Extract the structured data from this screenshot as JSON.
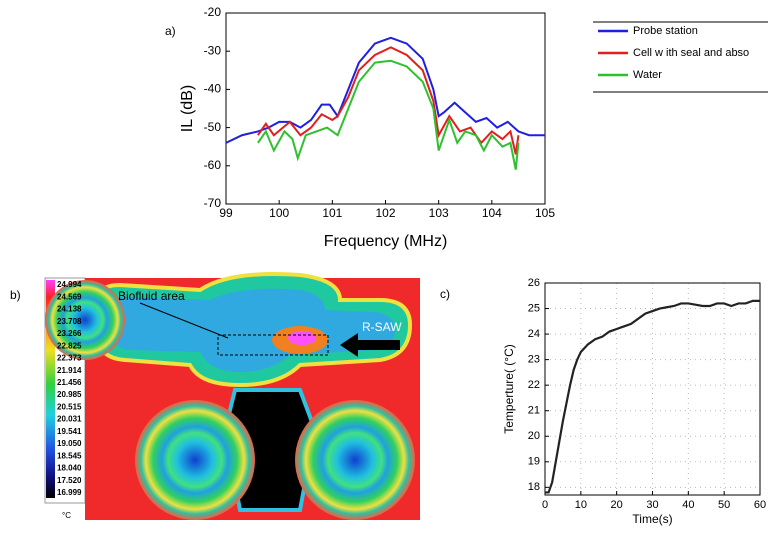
{
  "chart_data": [
    {
      "type": "line",
      "label": "a)",
      "y_label": "IL (dB)",
      "x_label": "Frequency (MHz)",
      "xlim": [
        99,
        105
      ],
      "xticks": [
        99,
        100,
        101,
        102,
        103,
        104,
        105
      ],
      "ylim": [
        -70,
        -20
      ],
      "yticks": [
        -20,
        -30,
        -40,
        -50,
        -60,
        -70
      ],
      "grid": false,
      "legend": "outside-right",
      "series": [
        {
          "name": "Probe station",
          "color": "#1f1fe0",
          "x": [
            99,
            99.3,
            99.6,
            99.8,
            100.0,
            100.2,
            100.4,
            100.6,
            100.8,
            100.95,
            101.1,
            101.3,
            101.5,
            101.8,
            102.1,
            102.4,
            102.7,
            102.9,
            103.0,
            103.1,
            103.3,
            103.5,
            103.7,
            103.9,
            104.1,
            104.3,
            104.5,
            104.7,
            105
          ],
          "values": [
            -54,
            -52,
            -51,
            -50,
            -48.5,
            -48.5,
            -50,
            -48,
            -44,
            -44,
            -47,
            -40,
            -33,
            -28,
            -26.5,
            -28,
            -32,
            -40,
            -47,
            -46,
            -43.5,
            -46,
            -48.5,
            -47.5,
            -50,
            -48.5,
            -51,
            -52,
            -52
          ]
        },
        {
          "name": "Cell w ith seal and abso",
          "color": "#e01f1f",
          "x": [
            99.6,
            99.75,
            99.9,
            100.2,
            100.4,
            100.6,
            100.8,
            101.0,
            101.1,
            101.3,
            101.5,
            101.8,
            102.1,
            102.4,
            102.7,
            102.9,
            103.0,
            103.2,
            103.4,
            103.6,
            103.8,
            104.0,
            104.2,
            104.35,
            104.45,
            104.5
          ],
          "values": [
            -52,
            -49,
            -52,
            -48.5,
            -52,
            -50,
            -46.5,
            -48,
            -47,
            -42,
            -35,
            -31,
            -29,
            -31,
            -35,
            -43,
            -52,
            -47,
            -51,
            -50,
            -54,
            -51,
            -53,
            -51,
            -57,
            -52
          ]
        },
        {
          "name": "Water",
          "color": "#2fc02f",
          "x": [
            99.6,
            99.75,
            99.9,
            100.1,
            100.25,
            100.35,
            100.5,
            100.7,
            100.9,
            101.1,
            101.3,
            101.5,
            101.8,
            102.1,
            102.4,
            102.7,
            102.9,
            103.0,
            103.2,
            103.35,
            103.5,
            103.7,
            103.85,
            104.0,
            104.2,
            104.35,
            104.45,
            104.5
          ],
          "values": [
            -54,
            -51,
            -56,
            -51,
            -53,
            -58,
            -52,
            -51,
            -50,
            -52,
            -45,
            -38,
            -33,
            -32.5,
            -34,
            -38,
            -45,
            -56,
            -48,
            -54,
            -51,
            -52,
            -56,
            -52,
            -55,
            -54,
            -61,
            -54
          ]
        }
      ]
    },
    {
      "type": "line",
      "label": "c)",
      "y_label": "Temperture( (°C)",
      "x_label": "Time(s)",
      "xlim": [
        0,
        60
      ],
      "xticks": [
        0,
        10,
        20,
        30,
        40,
        50,
        60
      ],
      "ylim": [
        17.7,
        26
      ],
      "yticks": [
        18,
        19,
        20,
        21,
        22,
        23,
        24,
        25,
        26
      ],
      "grid": true,
      "series": [
        {
          "color": "#222222",
          "x": [
            0,
            1,
            2,
            3,
            4,
            5,
            6,
            7,
            8,
            9,
            10,
            12,
            14,
            16,
            18,
            20,
            22,
            24,
            26,
            28,
            30,
            32,
            34,
            36,
            38,
            40,
            42,
            44,
            46,
            48,
            50,
            52,
            54,
            56,
            58,
            60
          ],
          "values": [
            17.8,
            17.8,
            18.2,
            19,
            19.8,
            20.6,
            21.3,
            22,
            22.6,
            23,
            23.3,
            23.6,
            23.8,
            23.9,
            24.1,
            24.2,
            24.3,
            24.4,
            24.6,
            24.8,
            24.9,
            25,
            25.05,
            25.1,
            25.2,
            25.2,
            25.15,
            25.1,
            25.1,
            25.2,
            25.2,
            25.1,
            25.2,
            25.2,
            25.3,
            25.3
          ]
        }
      ]
    }
  ],
  "thermal_image": {
    "label": "b)",
    "annotations": [
      "Biofluid area",
      "R-SAW"
    ],
    "unit": "°C",
    "scale": [
      "24.994",
      "24.569",
      "24.138",
      "23.708",
      "23.266",
      "22.825",
      "22.373",
      "21.914",
      "21.456",
      "20.985",
      "20.515",
      "20.031",
      "19.541",
      "19.050",
      "18.545",
      "18.040",
      "17.520",
      "16.999"
    ]
  }
}
